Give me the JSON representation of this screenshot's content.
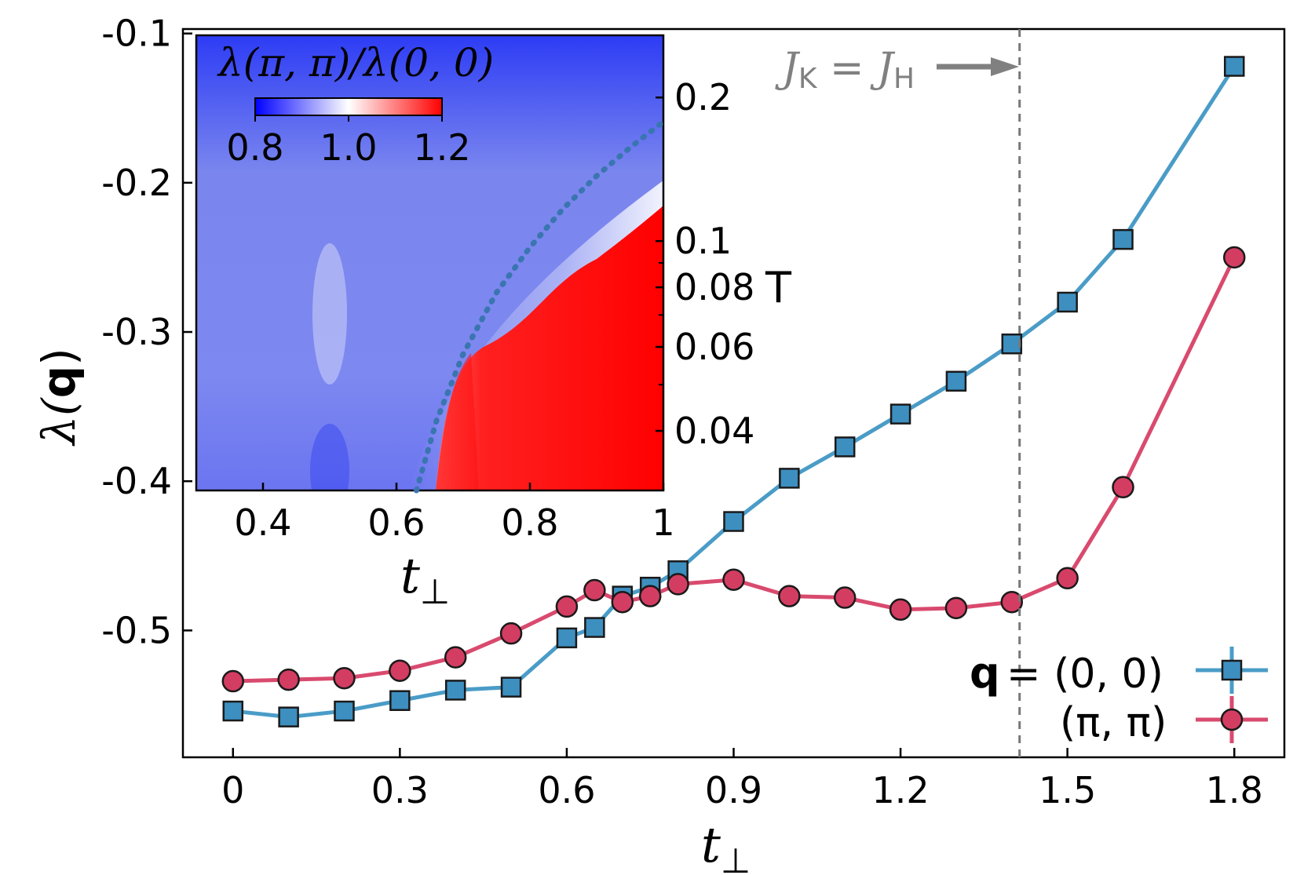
{
  "chart_data": [
    {
      "type": "line",
      "xlabel": "t⊥",
      "ylabel": "λ(q)",
      "ylabel_symbol": "λ(",
      "ylabel_q": "q",
      "ylabel_close": ")",
      "xlim": [
        -0.09,
        1.89
      ],
      "ylim": [
        -0.585,
        -0.097
      ],
      "xticks": [
        0,
        0.3,
        0.6,
        0.9,
        1.2,
        1.5,
        1.8
      ],
      "xtick_labels": [
        "0",
        "0.3",
        "0.6",
        "0.9",
        "1.2",
        "1.5",
        "1.8"
      ],
      "yticks": [
        -0.1,
        -0.2,
        -0.3,
        -0.4,
        -0.5
      ],
      "ytick_labels": [
        "-0.1",
        "-0.2",
        "-0.3",
        "-0.4",
        "-0.5"
      ],
      "vline_x": 1.414,
      "annotation": {
        "text_main": "J",
        "sub1": "K",
        "eq": " = ",
        "sub2": "H"
      },
      "legend_position": "bottom-right",
      "legend_title_q": "q",
      "series": [
        {
          "name": "(0, 0)",
          "legend_label": "= (0, 0)",
          "color": "#4a9cc7",
          "marker": "square",
          "x": [
            0,
            0.1,
            0.2,
            0.3,
            0.4,
            0.5,
            0.6,
            0.65,
            0.7,
            0.75,
            0.8,
            0.9,
            1.0,
            1.1,
            1.2,
            1.3,
            1.4,
            1.5,
            1.6,
            1.8
          ],
          "values": [
            -0.554,
            -0.558,
            -0.554,
            -0.547,
            -0.54,
            -0.538,
            -0.505,
            -0.498,
            -0.477,
            -0.471,
            -0.46,
            -0.427,
            -0.398,
            -0.377,
            -0.355,
            -0.333,
            -0.308,
            -0.28,
            -0.238,
            -0.122
          ]
        },
        {
          "name": "(π, π)",
          "legend_label": "(π, π)",
          "color": "#d94a6e",
          "marker": "circle",
          "x": [
            0,
            0.1,
            0.2,
            0.3,
            0.4,
            0.5,
            0.6,
            0.65,
            0.7,
            0.75,
            0.8,
            0.9,
            1.0,
            1.1,
            1.2,
            1.3,
            1.4,
            1.5,
            1.6,
            1.8
          ],
          "values": [
            -0.534,
            -0.533,
            -0.532,
            -0.527,
            -0.518,
            -0.502,
            -0.484,
            -0.473,
            -0.481,
            -0.477,
            -0.469,
            -0.466,
            -0.477,
            -0.478,
            -0.486,
            -0.485,
            -0.481,
            -0.465,
            -0.404,
            -0.25
          ]
        }
      ]
    },
    {
      "type": "heatmap",
      "title": "λ(π, π)/λ(0, 0)",
      "xlabel": "t⊥",
      "ylabel": "T",
      "xlim": [
        0.3,
        1.0
      ],
      "yscale": "log",
      "ylim": [
        0.03,
        0.27
      ],
      "xticks": [
        0.4,
        0.6,
        0.8,
        1.0
      ],
      "xtick_labels": [
        "0.4",
        "0.6",
        "0.8",
        "1"
      ],
      "yticks": [
        0.04,
        0.06,
        0.08,
        0.1,
        0.2
      ],
      "ytick_labels": [
        "0.04",
        "0.06",
        "0.08",
        "0.1",
        "0.2"
      ],
      "colorbar": {
        "min": 0.8,
        "max": 1.2,
        "ticks": [
          "0.8",
          "1.0",
          "1.2"
        ],
        "colors": [
          "#0000ff",
          "#ffffff",
          "#ff0000"
        ]
      },
      "boundary_curve": {
        "style": "dotted",
        "color": "#3a75b0",
        "t_perp": [
          0.63,
          0.66,
          0.7,
          0.75,
          0.8,
          0.85,
          0.9,
          0.95,
          1.0
        ],
        "T": [
          0.03,
          0.042,
          0.058,
          0.078,
          0.097,
          0.117,
          0.137,
          0.157,
          0.178
        ]
      }
    }
  ]
}
